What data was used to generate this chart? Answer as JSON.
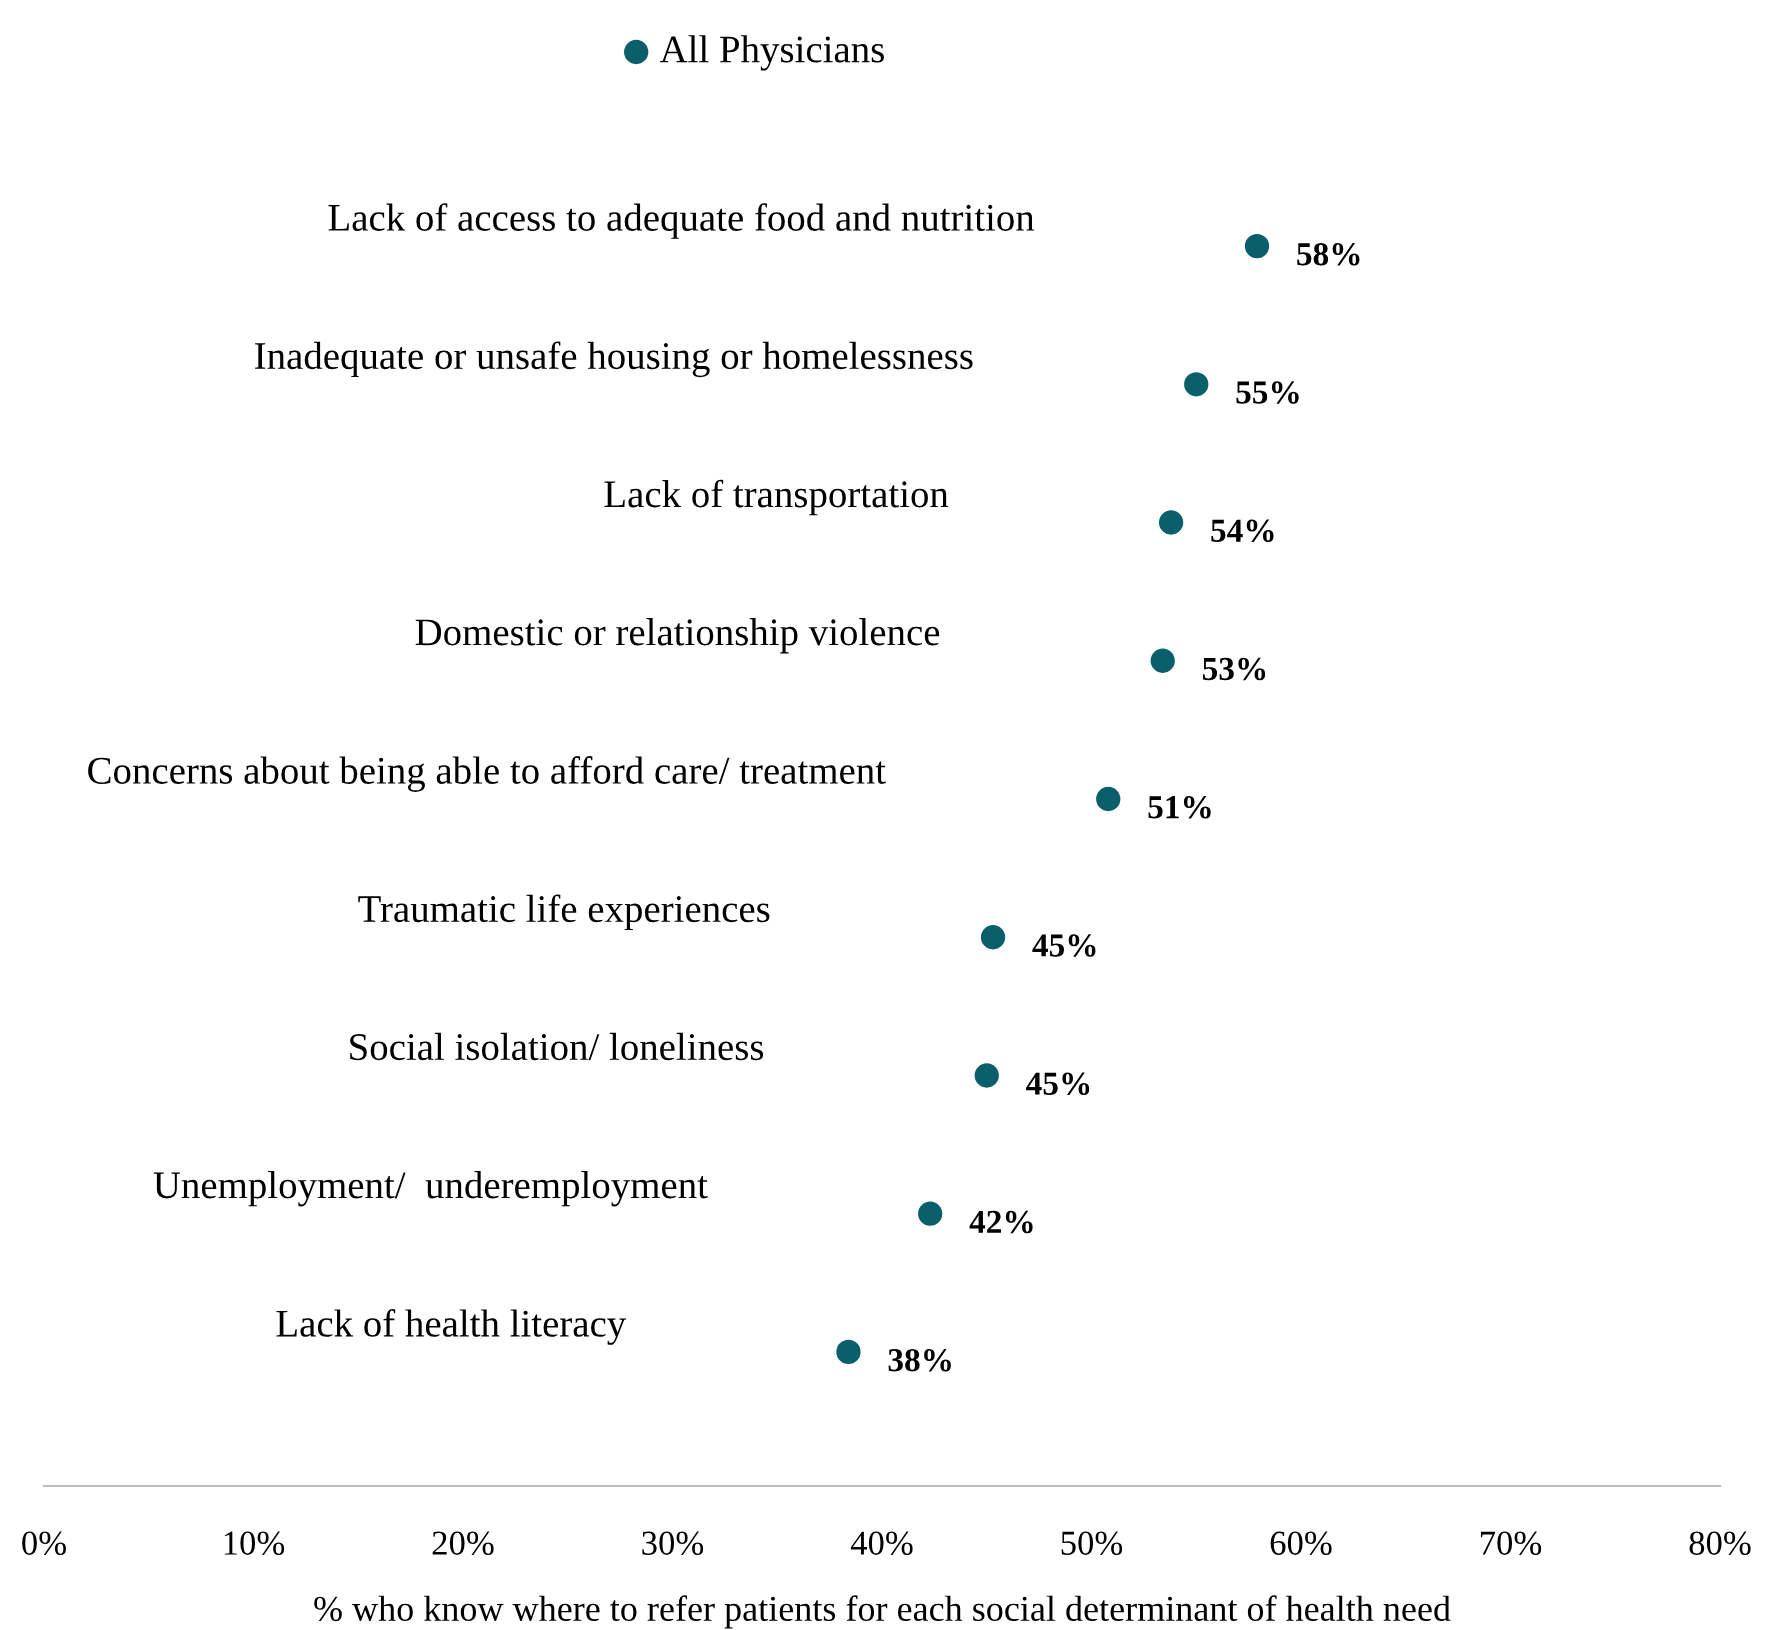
{
  "chart_data": {
    "type": "scatter",
    "orientation": "horizontal",
    "xlabel": "% who know where to refer patients for each social determinant of health need",
    "categories": [
      "Lack of access to adequate food and nutrition",
      "Inadequate or unsafe housing or homelessness",
      "Lack of transportation",
      "Domestic or relationship violence",
      "Concerns about being able to afford care/ treatment",
      "Traumatic life experiences",
      "Social isolation/ loneliness",
      "Unemployment/  underemployment",
      "Lack of health literacy"
    ],
    "series": [
      {
        "name": "All Physicians",
        "color": "#0b5f6b",
        "values": [
          57.9,
          55.0,
          53.8,
          53.4,
          50.8,
          45.3,
          45.0,
          42.3,
          38.4
        ],
        "value_labels": [
          "58%",
          "55%",
          "54%",
          "53%",
          "51%",
          "45%",
          "45%",
          "42%",
          "38%"
        ]
      }
    ],
    "xlim": [
      0,
      80
    ],
    "xticks": [
      {
        "value": 0,
        "label": "0%"
      },
      {
        "value": 10,
        "label": "10%"
      },
      {
        "value": 20,
        "label": "20%"
      },
      {
        "value": 30,
        "label": "30%"
      },
      {
        "value": 40,
        "label": "40%"
      },
      {
        "value": 50,
        "label": "50%"
      },
      {
        "value": 60,
        "label": "60%"
      },
      {
        "value": 70,
        "label": "70%"
      },
      {
        "value": 80,
        "label": "80%"
      }
    ],
    "legend": "top",
    "marker": "circle",
    "grid": false
  }
}
